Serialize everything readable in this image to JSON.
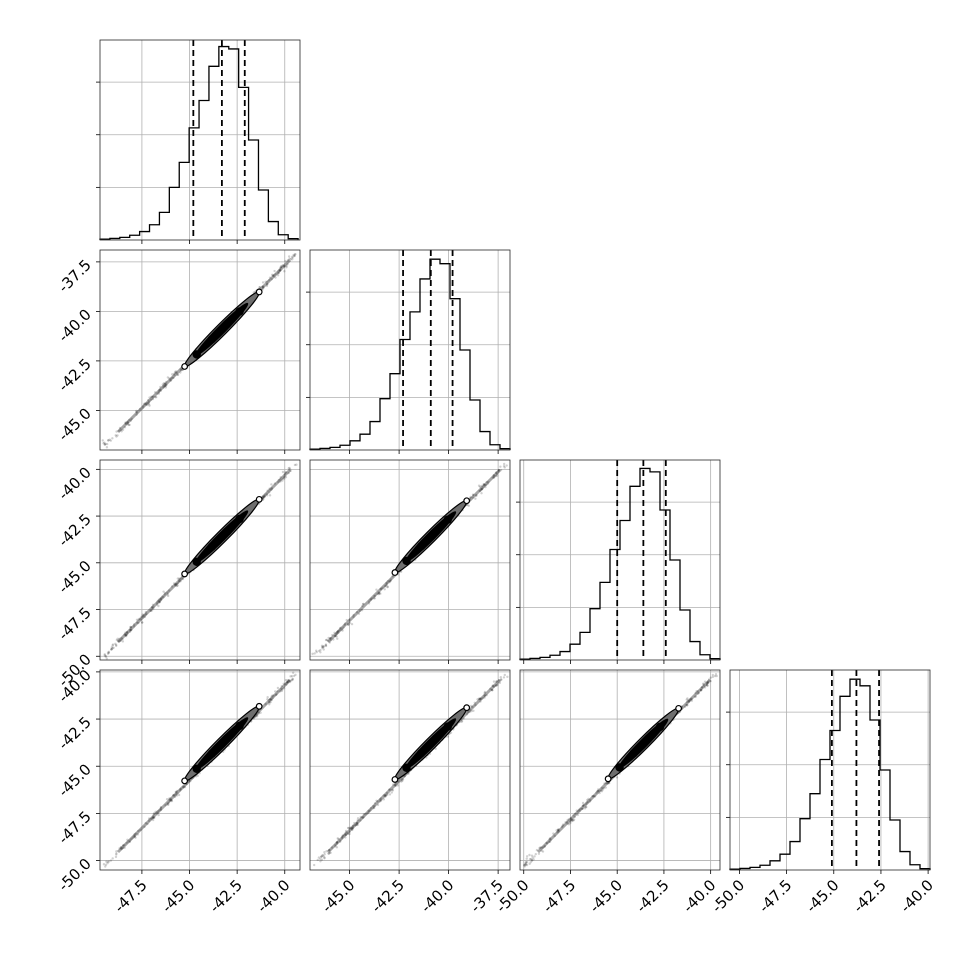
{
  "chart_data": {
    "type": "corner",
    "n_params": 4,
    "grid": true,
    "colors": {
      "line": "#000000",
      "grid": "#b0b0b0",
      "frame": "#262626"
    },
    "params": [
      {
        "range": [
          -49.7,
          -39.2
        ],
        "ticks": [
          "-47.5",
          "-45.0",
          "-42.5",
          "-40.0"
        ],
        "tick_values": [
          -47.5,
          -45.0,
          -42.5,
          -40.0
        ],
        "quantiles": [
          -44.8,
          -43.3,
          -42.1
        ],
        "hist_bin_start": -49.7,
        "hist_bin_width": 0.52,
        "hist_counts": [
          0.3,
          0.6,
          1.0,
          1.8,
          3.2,
          5.8,
          10.5,
          20.0,
          29.5,
          42.6,
          53.0,
          66.0,
          73.5,
          72.6,
          58.0,
          38.0,
          19.0,
          7.0,
          2.0,
          0.5
        ]
      },
      {
        "range": [
          -47.0,
          -36.9
        ],
        "ticks": [
          "-45.0",
          "-42.5",
          "-40.0",
          "-37.5"
        ],
        "tick_values": [
          -45.0,
          -42.5,
          -40.0,
          -37.5
        ],
        "quantiles": [
          -42.3,
          -40.9,
          -39.8
        ],
        "hist_bin_start": -47.0,
        "hist_bin_width": 0.505,
        "hist_counts": [
          0.3,
          0.6,
          1.0,
          1.8,
          3.5,
          6.0,
          10.8,
          19.5,
          29.0,
          42.0,
          52.5,
          65.0,
          72.5,
          70.8,
          57.5,
          38.0,
          19.0,
          7.0,
          2.0,
          0.5
        ]
      },
      {
        "range": [
          -50.2,
          -39.5
        ],
        "ticks": [
          "-50.0",
          "-47.5",
          "-45.0",
          "-42.5",
          "-40.0"
        ],
        "tick_values": [
          -50.0,
          -47.5,
          -45.0,
          -42.5,
          -40.0
        ],
        "quantiles": [
          -45.0,
          -43.6,
          -42.4
        ],
        "hist_bin_start": -50.2,
        "hist_bin_width": 0.535,
        "hist_counts": [
          0.3,
          0.6,
          1.0,
          1.8,
          3.2,
          6.0,
          10.5,
          19.5,
          29.5,
          42.0,
          53.0,
          66.0,
          72.8,
          71.5,
          57.0,
          38.0,
          19.0,
          7.0,
          2.0,
          0.5
        ]
      },
      {
        "range": [
          -50.5,
          -39.9
        ],
        "ticks": [
          "-50.0",
          "-47.5",
          "-45.0",
          "-42.5",
          "-40.0"
        ],
        "tick_values": [
          -50.0,
          -47.5,
          -45.0,
          -42.5,
          -40.0
        ],
        "quantiles": [
          -45.1,
          -43.8,
          -42.6
        ],
        "hist_bin_start": -50.5,
        "hist_bin_width": 0.53,
        "hist_counts": [
          0.3,
          0.6,
          1.0,
          1.8,
          3.5,
          6.0,
          10.8,
          19.5,
          29.0,
          42.0,
          53.0,
          66.0,
          72.5,
          70.0,
          57.0,
          38.0,
          19.0,
          7.0,
          2.0,
          0.5
        ]
      }
    ],
    "diag_ylim": [
      0,
      76
    ],
    "diag_yticks": [
      20,
      40,
      60
    ],
    "correlation": "strong positive (near-linear)",
    "scatter_extent": [
      0.02,
      0.98
    ],
    "contour_width_frac": 0.028
  }
}
